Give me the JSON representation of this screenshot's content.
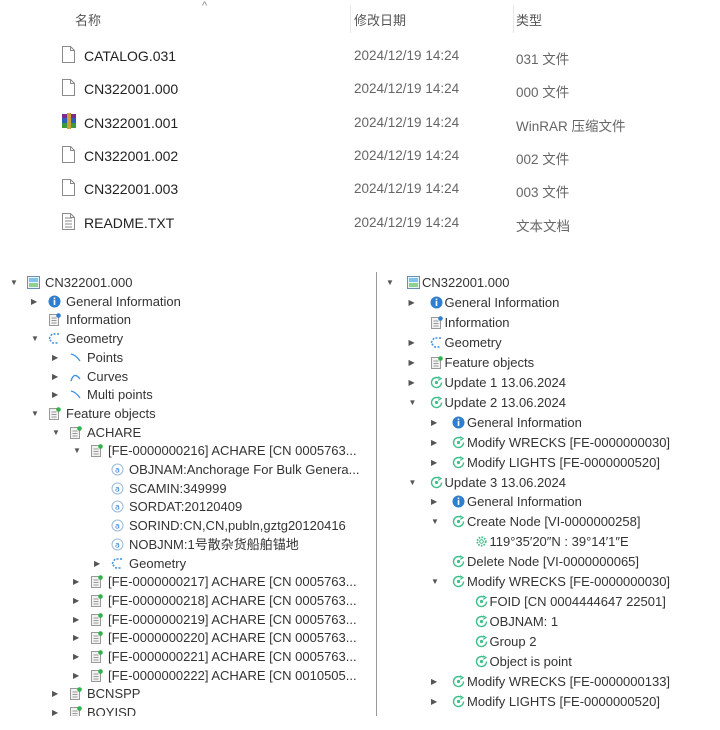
{
  "file_list": {
    "columns": {
      "name": "名称",
      "date": "修改日期",
      "type": "类型"
    },
    "sort_indicator": "^",
    "files": [
      {
        "name": "CATALOG.031",
        "date": "2024/12/19 14:24",
        "type": "031 文件",
        "icon": "blank-file-icon"
      },
      {
        "name": "CN322001.000",
        "date": "2024/12/19 14:24",
        "type": "000 文件",
        "icon": "blank-file-icon"
      },
      {
        "name": "CN322001.001",
        "date": "2024/12/19 14:24",
        "type": "WinRAR 压缩文件",
        "icon": "winrar-archive-icon"
      },
      {
        "name": "CN322001.002",
        "date": "2024/12/19 14:24",
        "type": "002 文件",
        "icon": "blank-file-icon"
      },
      {
        "name": "CN322001.003",
        "date": "2024/12/19 14:24",
        "type": "003 文件",
        "icon": "blank-file-icon"
      },
      {
        "name": "README.TXT",
        "date": "2024/12/19 14:24",
        "type": "文本文档",
        "icon": "text-document-icon"
      }
    ]
  },
  "colors": {
    "info_blue": "#2f7fd0",
    "update_green": "#3dbf8a",
    "geometry_blue": "#3a8ee6",
    "text": "#333333"
  },
  "left_tree": [
    {
      "level": 0,
      "exp": "down",
      "icon": "chart-icon",
      "label": "CN322001.000"
    },
    {
      "level": 1,
      "exp": "right",
      "icon": "info-icon",
      "label": "General Information"
    },
    {
      "level": 1,
      "exp": "none",
      "icon": "doc-blue-icon",
      "label": "Information"
    },
    {
      "level": 1,
      "exp": "down",
      "icon": "geometry-icon",
      "label": "Geometry"
    },
    {
      "level": 2,
      "exp": "right",
      "icon": "point-icon",
      "label": "Points"
    },
    {
      "level": 2,
      "exp": "right",
      "icon": "curve-icon",
      "label": "Curves"
    },
    {
      "level": 2,
      "exp": "right",
      "icon": "point-icon",
      "label": "Multi points"
    },
    {
      "level": 1,
      "exp": "down",
      "icon": "doc-green-icon",
      "label": "Feature objects"
    },
    {
      "level": 2,
      "exp": "down",
      "icon": "doc-green-icon",
      "label": "ACHARE"
    },
    {
      "level": 3,
      "exp": "down",
      "icon": "doc-green-icon",
      "label": "[FE-0000000216] ACHARE [CN 0005763..."
    },
    {
      "level": 4,
      "exp": "none",
      "icon": "attribute-icon",
      "label": "OBJNAM:Anchorage For Bulk Genera..."
    },
    {
      "level": 4,
      "exp": "none",
      "icon": "attribute-icon",
      "label": "SCAMIN:349999"
    },
    {
      "level": 4,
      "exp": "none",
      "icon": "attribute-icon",
      "label": "SORDAT:20120409"
    },
    {
      "level": 4,
      "exp": "none",
      "icon": "attribute-icon",
      "label": "SORIND:CN,CN,publn,gztg20120416"
    },
    {
      "level": 4,
      "exp": "none",
      "icon": "attribute-icon",
      "label": "NOBJNM:1号散杂货船舶锚地"
    },
    {
      "level": 4,
      "exp": "right",
      "icon": "geometry-icon",
      "label": "Geometry"
    },
    {
      "level": 3,
      "exp": "right",
      "icon": "doc-green-icon",
      "label": "[FE-0000000217] ACHARE [CN 0005763..."
    },
    {
      "level": 3,
      "exp": "right",
      "icon": "doc-green-icon",
      "label": "[FE-0000000218] ACHARE [CN 0005763..."
    },
    {
      "level": 3,
      "exp": "right",
      "icon": "doc-green-icon",
      "label": "[FE-0000000219] ACHARE [CN 0005763..."
    },
    {
      "level": 3,
      "exp": "right",
      "icon": "doc-green-icon",
      "label": "[FE-0000000220] ACHARE [CN 0005763..."
    },
    {
      "level": 3,
      "exp": "right",
      "icon": "doc-green-icon",
      "label": "[FE-0000000221] ACHARE [CN 0005763..."
    },
    {
      "level": 3,
      "exp": "right",
      "icon": "doc-green-icon",
      "label": "[FE-0000000222] ACHARE [CN 0010505..."
    },
    {
      "level": 2,
      "exp": "right",
      "icon": "doc-green-icon",
      "label": "BCNSPP"
    },
    {
      "level": 2,
      "exp": "right",
      "icon": "doc-green-icon",
      "label": "BOYISD"
    }
  ],
  "right_tree": [
    {
      "level": 0,
      "exp": "down",
      "icon": "chart-icon",
      "label": "CN322001.000"
    },
    {
      "level": 1,
      "exp": "right",
      "icon": "info-icon",
      "label": "General Information"
    },
    {
      "level": 1,
      "exp": "none",
      "icon": "doc-blue-icon",
      "label": "Information"
    },
    {
      "level": 1,
      "exp": "right",
      "icon": "geometry-icon",
      "label": "Geometry"
    },
    {
      "level": 1,
      "exp": "right",
      "icon": "doc-green-icon",
      "label": "Feature objects"
    },
    {
      "level": 1,
      "exp": "right",
      "icon": "update-icon",
      "label": "Update 1 13.06.2024"
    },
    {
      "level": 1,
      "exp": "down",
      "icon": "update-icon",
      "label": "Update 2 13.06.2024"
    },
    {
      "level": 2,
      "exp": "right",
      "icon": "info-icon",
      "label": "General Information"
    },
    {
      "level": 2,
      "exp": "right",
      "icon": "update-icon",
      "label": "Modify WRECKS [FE-0000000030]"
    },
    {
      "level": 2,
      "exp": "right",
      "icon": "update-icon",
      "label": "Modify LIGHTS [FE-0000000520]"
    },
    {
      "level": 1,
      "exp": "down",
      "icon": "update-icon",
      "label": "Update 3 13.06.2024"
    },
    {
      "level": 2,
      "exp": "right",
      "icon": "info-icon",
      "label": "General Information"
    },
    {
      "level": 2,
      "exp": "down",
      "icon": "update-icon",
      "label": "Create Node [VI-0000000258]"
    },
    {
      "level": 3,
      "exp": "none",
      "icon": "gear-icon",
      "label": "119°35′20″N : 39°14′1″E"
    },
    {
      "level": 2,
      "exp": "none",
      "icon": "update-icon",
      "label": "Delete Node [VI-0000000065]"
    },
    {
      "level": 2,
      "exp": "down",
      "icon": "update-icon",
      "label": "Modify WRECKS [FE-0000000030]"
    },
    {
      "level": 3,
      "exp": "none",
      "icon": "update-icon",
      "label": "FOID [CN 0004444647 22501]"
    },
    {
      "level": 3,
      "exp": "none",
      "icon": "update-icon",
      "label": "OBJNAM:  1"
    },
    {
      "level": 3,
      "exp": "none",
      "icon": "update-icon",
      "label": "Group 2"
    },
    {
      "level": 3,
      "exp": "none",
      "icon": "update-icon",
      "label": "Object is point"
    },
    {
      "level": 2,
      "exp": "right",
      "icon": "update-icon",
      "label": "Modify WRECKS [FE-0000000133]"
    },
    {
      "level": 2,
      "exp": "right",
      "icon": "update-icon",
      "label": "Modify LIGHTS [FE-0000000520]"
    }
  ]
}
